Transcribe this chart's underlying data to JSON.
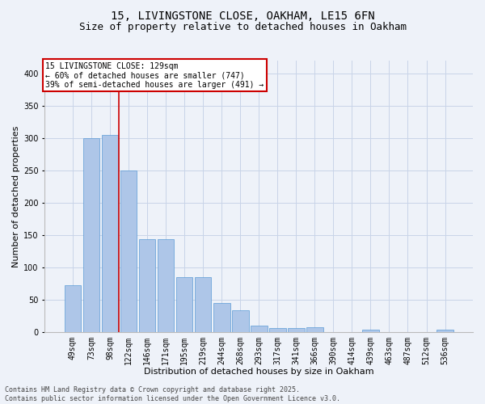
{
  "title": "15, LIVINGSTONE CLOSE, OAKHAM, LE15 6FN",
  "subtitle": "Size of property relative to detached houses in Oakham",
  "xlabel": "Distribution of detached houses by size in Oakham",
  "ylabel": "Number of detached properties",
  "categories": [
    "49sqm",
    "73sqm",
    "98sqm",
    "122sqm",
    "146sqm",
    "171sqm",
    "195sqm",
    "219sqm",
    "244sqm",
    "268sqm",
    "293sqm",
    "317sqm",
    "341sqm",
    "366sqm",
    "390sqm",
    "414sqm",
    "439sqm",
    "463sqm",
    "487sqm",
    "512sqm",
    "536sqm"
  ],
  "values": [
    72,
    300,
    305,
    250,
    143,
    143,
    85,
    85,
    45,
    33,
    10,
    6,
    6,
    7,
    0,
    0,
    3,
    0,
    0,
    0,
    3
  ],
  "bar_color": "#aec6e8",
  "bar_edge_color": "#5b9bd5",
  "grid_color": "#c8d4e8",
  "background_color": "#eef2f9",
  "annotation_box_text": "15 LIVINGSTONE CLOSE: 129sqm\n← 60% of detached houses are smaller (747)\n39% of semi-detached houses are larger (491) →",
  "annotation_box_color": "#ffffff",
  "annotation_box_edge_color": "#cc0000",
  "vline_color": "#cc0000",
  "vline_position": 2.5,
  "ylim": [
    0,
    420
  ],
  "yticks": [
    0,
    50,
    100,
    150,
    200,
    250,
    300,
    350,
    400
  ],
  "footer_line1": "Contains HM Land Registry data © Crown copyright and database right 2025.",
  "footer_line2": "Contains public sector information licensed under the Open Government Licence v3.0.",
  "title_fontsize": 10,
  "subtitle_fontsize": 9,
  "xlabel_fontsize": 8,
  "ylabel_fontsize": 8,
  "tick_fontsize": 7,
  "annotation_fontsize": 7,
  "footer_fontsize": 6
}
